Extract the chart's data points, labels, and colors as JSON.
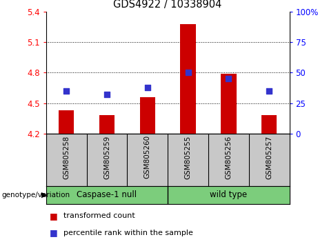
{
  "title": "GDS4922 / 10338904",
  "samples": [
    "GSM805258",
    "GSM805259",
    "GSM805260",
    "GSM805255",
    "GSM805256",
    "GSM805257"
  ],
  "bar_values": [
    4.43,
    4.38,
    4.56,
    5.28,
    4.79,
    4.38
  ],
  "dot_percentile": [
    35,
    32,
    38,
    50,
    45,
    35
  ],
  "ylim_left": [
    4.2,
    5.4
  ],
  "ylim_right": [
    0,
    100
  ],
  "yticks_left": [
    4.2,
    4.5,
    4.8,
    5.1,
    5.4
  ],
  "yticks_right": [
    0,
    25,
    50,
    75,
    100
  ],
  "grid_lines": [
    4.5,
    4.8,
    5.1
  ],
  "bar_color": "#cc0000",
  "dot_color": "#3333cc",
  "bar_width": 0.38,
  "group_green": "#7CCD7C",
  "label_gray": "#c8c8c8",
  "legend_red_label": "transformed count",
  "legend_blue_label": "percentile rank within the sample",
  "genotype_label": "genotype/variation",
  "group1_label": "Caspase-1 null",
  "group2_label": "wild type"
}
